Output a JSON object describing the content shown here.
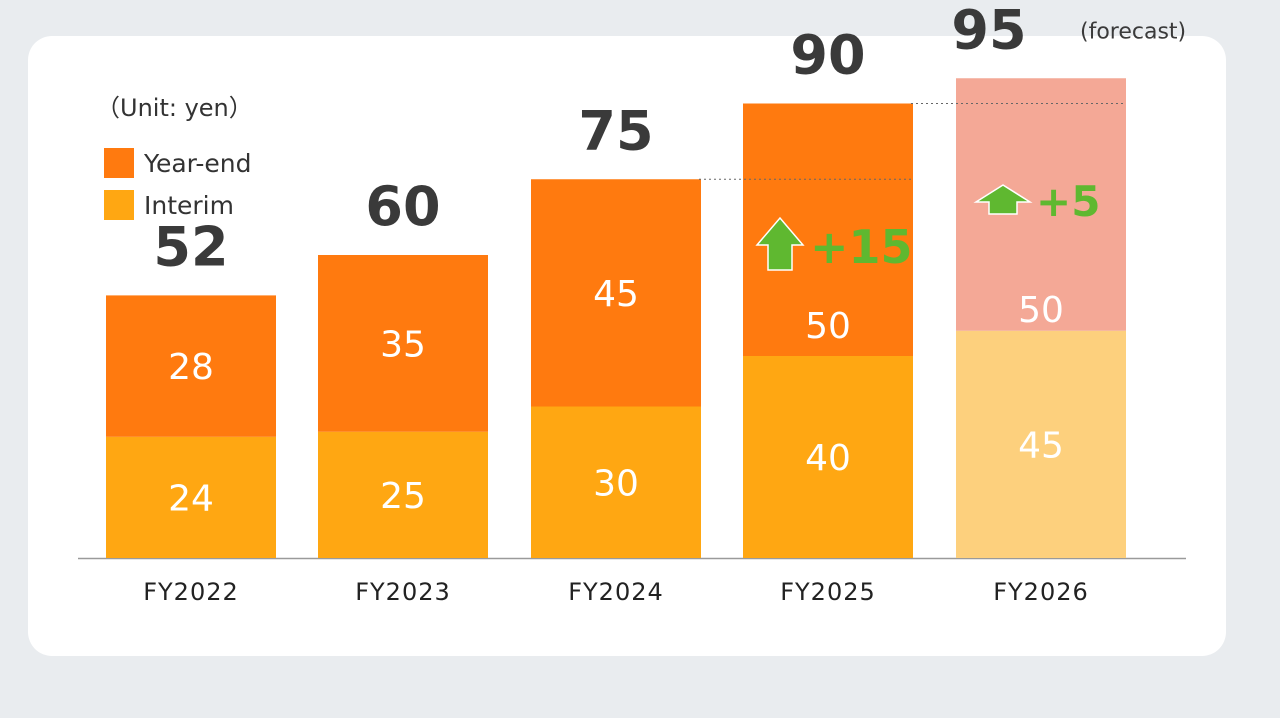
{
  "unit_label": "（Unit: yen）",
  "legend": [
    {
      "label": "Year-end",
      "color": "#ff7a0f"
    },
    {
      "label": "Interim",
      "color": "#ffa712"
    }
  ],
  "chart_data": {
    "type": "bar",
    "stacked": true,
    "categories": [
      "FY2022",
      "FY2023",
      "FY2024",
      "FY2025",
      "FY2026"
    ],
    "series": [
      {
        "name": "Interim",
        "values": [
          24,
          25,
          30,
          40,
          45
        ],
        "color": "#ffa712",
        "forecast_color": "#fdd07d"
      },
      {
        "name": "Year-end",
        "values": [
          28,
          35,
          45,
          50,
          50
        ],
        "color": "#ff7a0f",
        "forecast_color": "#f4a896"
      }
    ],
    "totals": [
      "52",
      "60",
      "75",
      "90",
      "95"
    ],
    "forecast_index": 4,
    "forecast_label": "(forecast)",
    "increases": [
      {
        "category": "FY2025",
        "label": "+15"
      },
      {
        "category": "FY2026",
        "label": "+5"
      }
    ],
    "increase_color": "#5fb830",
    "ylim": [
      0,
      100
    ],
    "grid": false
  }
}
